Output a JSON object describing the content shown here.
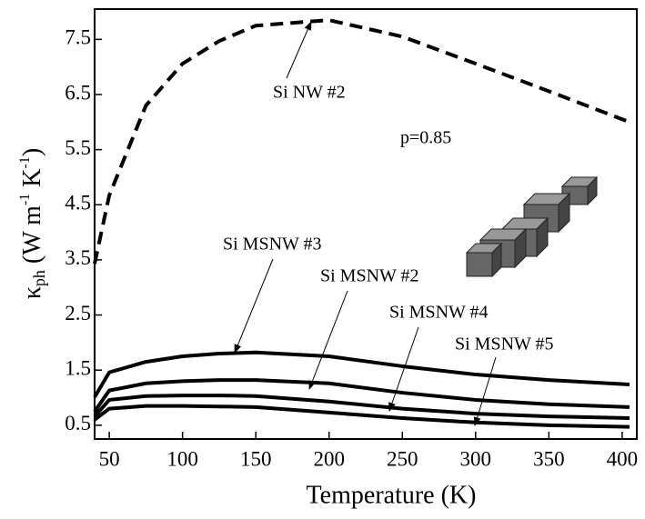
{
  "chart_data": {
    "type": "line",
    "xlabel": "Temperature (K)",
    "ylabel": [
      "κ",
      "ph",
      " (W m",
      "-1",
      " K",
      "-1",
      ")"
    ],
    "x": [
      40,
      50,
      75,
      100,
      125,
      150,
      200,
      250,
      300,
      350,
      405
    ],
    "xlim": [
      40,
      410
    ],
    "xticks": [
      50,
      100,
      150,
      200,
      250,
      300,
      350,
      400
    ],
    "ylim": [
      0.25,
      8.05
    ],
    "yticks": [
      0.5,
      1.5,
      2.5,
      3.5,
      4.5,
      5.5,
      6.5,
      7.5
    ],
    "series": [
      {
        "name": "Si NW #2",
        "color": "#000000",
        "linestyle": "dashed",
        "values": [
          3.43,
          4.67,
          6.3,
          7.06,
          7.47,
          7.75,
          7.85,
          7.55,
          7.06,
          6.56,
          6.0
        ]
      },
      {
        "name": "Si MSNW #3",
        "color": "#000000",
        "linestyle": "solid",
        "values": [
          1.01,
          1.46,
          1.65,
          1.75,
          1.8,
          1.82,
          1.75,
          1.57,
          1.42,
          1.32,
          1.24
        ]
      },
      {
        "name": "Si MSNW #2",
        "color": "#000000",
        "linestyle": "solid",
        "values": [
          0.75,
          1.13,
          1.26,
          1.3,
          1.32,
          1.32,
          1.26,
          1.09,
          0.96,
          0.88,
          0.83
        ]
      },
      {
        "name": "Si MSNW #4",
        "color": "#000000",
        "linestyle": "solid",
        "values": [
          0.66,
          0.96,
          1.03,
          1.04,
          1.04,
          1.03,
          0.93,
          0.8,
          0.71,
          0.66,
          0.63
        ]
      },
      {
        "name": "Si MSNW #5",
        "color": "#000000",
        "linestyle": "solid",
        "values": [
          0.6,
          0.8,
          0.85,
          0.85,
          0.84,
          0.83,
          0.73,
          0.63,
          0.55,
          0.5,
          0.47
        ]
      }
    ],
    "annotations": [
      "p=0.85"
    ]
  }
}
